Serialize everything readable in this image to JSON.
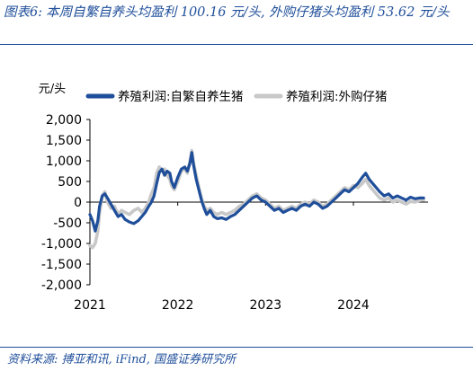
{
  "title": {
    "prefix": "图表6:",
    "text": "本周自繁自养头均盈利 100.16 元/头, 外购仔猪头均盈利 53.62 元/头"
  },
  "source": "资料来源: 搏亚和讯, iFind, 国盛证券研究所",
  "colors": {
    "series1": "#1f4e9a",
    "series2": "#c8c8c8",
    "accent": "#1f4e9a"
  },
  "chart_data": {
    "type": "line",
    "unit_label": "元/头",
    "ylim": [
      -2000,
      2000
    ],
    "yticks": [
      2000,
      1500,
      1000,
      500,
      0,
      -500,
      -1000,
      -1500,
      -2000
    ],
    "ytick_labels": [
      "2,000",
      "1,500",
      "1,000",
      "500",
      "0",
      "-500",
      "-1,000",
      "-1,500",
      "-2,000"
    ],
    "xlim": [
      2021.0,
      2024.85
    ],
    "xticks": [
      2021,
      2022,
      2023,
      2024
    ],
    "xtick_labels": [
      "2021",
      "2022",
      "2023",
      "2024"
    ],
    "grid": false,
    "legend_position": "top",
    "series": [
      {
        "name": "养殖利润:自繁自养生猪",
        "points": [
          [
            2021.0,
            -300
          ],
          [
            2021.03,
            -450
          ],
          [
            2021.06,
            -700
          ],
          [
            2021.09,
            -450
          ],
          [
            2021.11,
            -100
          ],
          [
            2021.14,
            150
          ],
          [
            2021.17,
            200
          ],
          [
            2021.2,
            100
          ],
          [
            2021.24,
            -50
          ],
          [
            2021.28,
            -200
          ],
          [
            2021.32,
            -350
          ],
          [
            2021.36,
            -300
          ],
          [
            2021.4,
            -420
          ],
          [
            2021.45,
            -480
          ],
          [
            2021.5,
            -520
          ],
          [
            2021.55,
            -450
          ],
          [
            2021.59,
            -350
          ],
          [
            2021.63,
            -250
          ],
          [
            2021.67,
            -100
          ],
          [
            2021.7,
            0
          ],
          [
            2021.73,
            150
          ],
          [
            2021.76,
            450
          ],
          [
            2021.79,
            720
          ],
          [
            2021.82,
            800
          ],
          [
            2021.85,
            650
          ],
          [
            2021.88,
            750
          ],
          [
            2021.91,
            700
          ],
          [
            2021.93,
            500
          ],
          [
            2021.96,
            350
          ],
          [
            2022.0,
            600
          ],
          [
            2022.04,
            800
          ],
          [
            2022.08,
            850
          ],
          [
            2022.11,
            750
          ],
          [
            2022.14,
            950
          ],
          [
            2022.16,
            1200
          ],
          [
            2022.18,
            900
          ],
          [
            2022.21,
            550
          ],
          [
            2022.24,
            300
          ],
          [
            2022.27,
            50
          ],
          [
            2022.3,
            -150
          ],
          [
            2022.33,
            -300
          ],
          [
            2022.37,
            -200
          ],
          [
            2022.41,
            -350
          ],
          [
            2022.45,
            -400
          ],
          [
            2022.5,
            -380
          ],
          [
            2022.55,
            -420
          ],
          [
            2022.6,
            -350
          ],
          [
            2022.65,
            -300
          ],
          [
            2022.7,
            -200
          ],
          [
            2022.75,
            -100
          ],
          [
            2022.8,
            0
          ],
          [
            2022.85,
            100
          ],
          [
            2022.9,
            150
          ],
          [
            2022.95,
            50
          ],
          [
            2023.0,
            0
          ],
          [
            2023.05,
            -100
          ],
          [
            2023.1,
            -200
          ],
          [
            2023.15,
            -150
          ],
          [
            2023.2,
            -250
          ],
          [
            2023.25,
            -200
          ],
          [
            2023.3,
            -150
          ],
          [
            2023.35,
            -200
          ],
          [
            2023.4,
            -100
          ],
          [
            2023.45,
            -50
          ],
          [
            2023.5,
            -100
          ],
          [
            2023.55,
            0
          ],
          [
            2023.6,
            -50
          ],
          [
            2023.65,
            -150
          ],
          [
            2023.7,
            -100
          ],
          [
            2023.75,
            0
          ],
          [
            2023.8,
            100
          ],
          [
            2023.85,
            200
          ],
          [
            2023.9,
            300
          ],
          [
            2023.95,
            250
          ],
          [
            2024.0,
            350
          ],
          [
            2024.05,
            450
          ],
          [
            2024.1,
            600
          ],
          [
            2024.14,
            700
          ],
          [
            2024.18,
            550
          ],
          [
            2024.22,
            450
          ],
          [
            2024.26,
            350
          ],
          [
            2024.3,
            250
          ],
          [
            2024.35,
            150
          ],
          [
            2024.4,
            200
          ],
          [
            2024.45,
            100
          ],
          [
            2024.5,
            150
          ],
          [
            2024.55,
            100
          ],
          [
            2024.6,
            50
          ],
          [
            2024.65,
            120
          ],
          [
            2024.7,
            80
          ],
          [
            2024.75,
            100
          ],
          [
            2024.8,
            100
          ]
        ]
      },
      {
        "name": "养殖利润:外购仔猪",
        "points": [
          [
            2021.0,
            -1050
          ],
          [
            2021.03,
            -1100
          ],
          [
            2021.06,
            -1000
          ],
          [
            2021.09,
            -700
          ],
          [
            2021.11,
            -250
          ],
          [
            2021.14,
            150
          ],
          [
            2021.17,
            250
          ],
          [
            2021.2,
            0
          ],
          [
            2021.24,
            -150
          ],
          [
            2021.28,
            -100
          ],
          [
            2021.32,
            -300
          ],
          [
            2021.36,
            -200
          ],
          [
            2021.4,
            -250
          ],
          [
            2021.45,
            -300
          ],
          [
            2021.5,
            -200
          ],
          [
            2021.55,
            -150
          ],
          [
            2021.59,
            -250
          ],
          [
            2021.63,
            -150
          ],
          [
            2021.67,
            0
          ],
          [
            2021.7,
            200
          ],
          [
            2021.73,
            350
          ],
          [
            2021.76,
            700
          ],
          [
            2021.79,
            850
          ],
          [
            2021.82,
            750
          ],
          [
            2021.85,
            800
          ],
          [
            2021.88,
            650
          ],
          [
            2021.91,
            550
          ],
          [
            2021.93,
            400
          ],
          [
            2021.96,
            300
          ],
          [
            2022.0,
            500
          ],
          [
            2022.04,
            750
          ],
          [
            2022.08,
            800
          ],
          [
            2022.11,
            700
          ],
          [
            2022.14,
            1000
          ],
          [
            2022.16,
            1250
          ],
          [
            2022.18,
            950
          ],
          [
            2022.21,
            650
          ],
          [
            2022.24,
            350
          ],
          [
            2022.27,
            100
          ],
          [
            2022.3,
            -100
          ],
          [
            2022.33,
            -200
          ],
          [
            2022.37,
            -150
          ],
          [
            2022.41,
            -250
          ],
          [
            2022.45,
            -300
          ],
          [
            2022.5,
            -250
          ],
          [
            2022.55,
            -300
          ],
          [
            2022.6,
            -250
          ],
          [
            2022.65,
            -200
          ],
          [
            2022.7,
            -100
          ],
          [
            2022.75,
            -50
          ],
          [
            2022.8,
            50
          ],
          [
            2022.85,
            150
          ],
          [
            2022.9,
            200
          ],
          [
            2022.95,
            100
          ],
          [
            2023.0,
            50
          ],
          [
            2023.05,
            -50
          ],
          [
            2023.1,
            -150
          ],
          [
            2023.15,
            -100
          ],
          [
            2023.2,
            -200
          ],
          [
            2023.25,
            -150
          ],
          [
            2023.3,
            -100
          ],
          [
            2023.35,
            -150
          ],
          [
            2023.4,
            -50
          ],
          [
            2023.45,
            0
          ],
          [
            2023.5,
            -50
          ],
          [
            2023.55,
            50
          ],
          [
            2023.6,
            0
          ],
          [
            2023.65,
            -100
          ],
          [
            2023.7,
            -50
          ],
          [
            2023.75,
            50
          ],
          [
            2023.8,
            150
          ],
          [
            2023.85,
            250
          ],
          [
            2023.9,
            350
          ],
          [
            2023.95,
            300
          ],
          [
            2024.0,
            400
          ],
          [
            2024.05,
            350
          ],
          [
            2024.1,
            450
          ],
          [
            2024.14,
            550
          ],
          [
            2024.18,
            400
          ],
          [
            2024.22,
            300
          ],
          [
            2024.26,
            200
          ],
          [
            2024.3,
            100
          ],
          [
            2024.35,
            50
          ],
          [
            2024.4,
            100
          ],
          [
            2024.45,
            0
          ],
          [
            2024.5,
            50
          ],
          [
            2024.55,
            0
          ],
          [
            2024.6,
            -50
          ],
          [
            2024.65,
            20
          ],
          [
            2024.7,
            0
          ],
          [
            2024.75,
            40
          ],
          [
            2024.8,
            54
          ]
        ]
      }
    ]
  }
}
